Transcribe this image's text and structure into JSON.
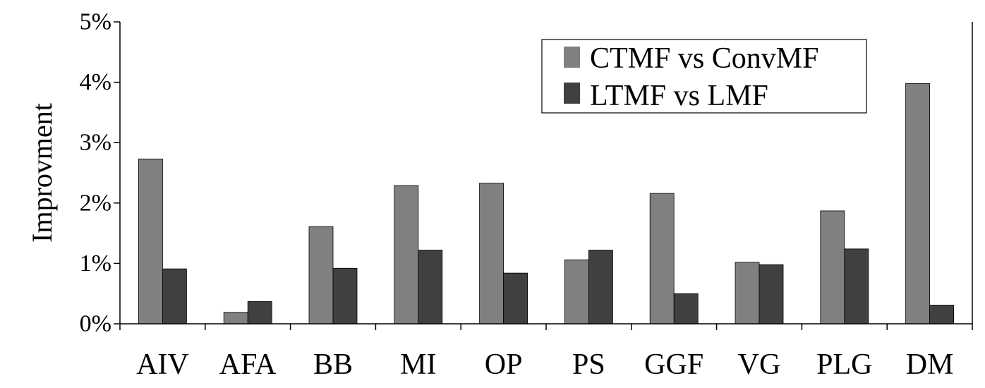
{
  "chart_data": {
    "type": "bar",
    "title": "",
    "xlabel": "",
    "ylabel": "Improvment",
    "ylim": [
      0,
      5
    ],
    "yticks": [
      "0%",
      "1%",
      "2%",
      "3%",
      "4%",
      "5%"
    ],
    "ytick_values": [
      0,
      1,
      2,
      3,
      4,
      5
    ],
    "grid": false,
    "legend_position": "top-right",
    "categories": [
      "AIV",
      "AFA",
      "BB",
      "MI",
      "OP",
      "PS",
      "GGF",
      "VG",
      "PLG",
      "DM"
    ],
    "series": [
      {
        "name": "CTMF vs ConvMF",
        "color": "#808080",
        "values": [
          2.73,
          0.19,
          1.61,
          2.29,
          2.33,
          1.06,
          2.16,
          1.02,
          1.87,
          3.98
        ]
      },
      {
        "name": "LTMF vs LMF",
        "color": "#404040",
        "values": [
          0.91,
          0.37,
          0.92,
          1.22,
          0.84,
          1.22,
          0.5,
          0.98,
          1.24,
          0.31
        ]
      }
    ]
  }
}
